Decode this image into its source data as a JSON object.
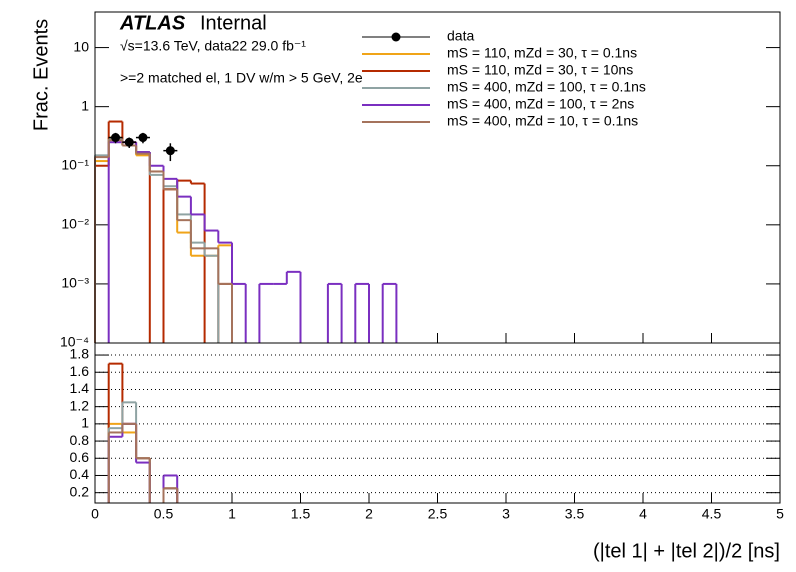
{
  "chart_data": [
    {
      "type": "histogram",
      "annotations": [
        "ATLAS",
        "Internal",
        "√s=13.6 TeV, data22 29.0 fb⁻¹",
        ">=2 matched el, 1 DV w/m > 5 GeV, 2e"
      ],
      "y_label": "Frac. Events",
      "log_y": true,
      "legend": "top-right",
      "xlim": [
        0,
        5
      ],
      "ylim": [
        0.0001,
        40
      ],
      "yticks": [
        {
          "value": 0.0001,
          "label": "10⁻⁴"
        },
        {
          "value": 0.001,
          "label": "10⁻³"
        },
        {
          "value": 0.01,
          "label": "10⁻²"
        },
        {
          "value": 0.1,
          "label": "10⁻¹"
        },
        1,
        10
      ],
      "bins": [
        0,
        0.1,
        0.2,
        0.3,
        0.4,
        0.5,
        0.6,
        0.7,
        0.8,
        0.9,
        1.0,
        1.1,
        1.2,
        1.3,
        1.4,
        1.5,
        1.6,
        1.7,
        1.8,
        1.9,
        2.0,
        2.1,
        2.2,
        2.3
      ],
      "data": {
        "name": "data",
        "color": "#000000",
        "x": [
          0.15,
          0.25,
          0.35,
          0.55
        ],
        "values": [
          0.3,
          0.25,
          0.3,
          0.18
        ],
        "errors": [
          0.06,
          0.05,
          0.06,
          0.06
        ]
      },
      "series": [
        {
          "name": "mS = 110, mZd = 30, τ = 0.1ns",
          "color": "#f0a418",
          "values": [
            0.12,
            0.3,
            0.22,
            0.15,
            0.08,
            0.04,
            0.0074,
            0.003,
            0.003,
            0.0045,
            null,
            null,
            null,
            null,
            null,
            null,
            null,
            null,
            null,
            null,
            null,
            null,
            null
          ]
        },
        {
          "name": "mS = 110, mZd = 30, τ = 10ns",
          "color": "#b52a00",
          "values": [
            0.1,
            0.56,
            0.25,
            0.17,
            null,
            0.04,
            0.056,
            0.05,
            null,
            0.001,
            null,
            null,
            null,
            null,
            null,
            null,
            null,
            null,
            null,
            null,
            null,
            null,
            null
          ]
        },
        {
          "name": "mS = 400, mZd = 100, τ = 0.1ns",
          "color": "#8fa3a3",
          "values": [
            0.15,
            0.28,
            0.22,
            0.17,
            0.07,
            0.045,
            0.015,
            0.005,
            0.003,
            null,
            null,
            null,
            null,
            null,
            null,
            null,
            null,
            null,
            null,
            null,
            null,
            null,
            null
          ]
        },
        {
          "name": "mS = 400, mZd = 100, τ = 2ns",
          "color": "#7a2fc0",
          "values": [
            null,
            0.25,
            0.25,
            0.17,
            0.1,
            0.06,
            0.03,
            0.015,
            0.008,
            0.005,
            0.001,
            null,
            0.001,
            0.001,
            0.0016,
            null,
            null,
            0.001,
            null,
            0.001,
            null,
            0.001,
            null
          ]
        },
        {
          "name": "mS = 400, mZd = 10, τ = 0.1ns",
          "color": "#a5735c",
          "values": [
            0.14,
            0.27,
            0.22,
            0.16,
            0.08,
            0.04,
            0.012,
            0.004,
            0.004,
            0.001,
            null,
            null,
            null,
            null,
            null,
            null,
            null,
            null,
            null,
            null,
            null,
            null,
            null
          ]
        }
      ]
    },
    {
      "type": "histogram",
      "x_label": "(|tel 1| + |tel 2|)/2 [ns]",
      "grid": true,
      "xlim": [
        0,
        5
      ],
      "xticks": [
        0,
        0.5,
        1,
        1.5,
        2,
        2.5,
        3,
        3.5,
        4,
        4.5,
        5
      ],
      "ylim": [
        0.08,
        1.94
      ],
      "yticks": [
        0.2,
        0.4,
        0.6,
        0.8,
        1,
        1.2,
        1.4,
        1.6,
        1.8
      ],
      "bins": [
        0.1,
        0.2,
        0.3,
        0.4,
        0.5,
        0.6
      ],
      "series": [
        {
          "color": "#f0a418",
          "values": [
            1.0,
            0.9,
            0.6,
            null,
            0.25
          ]
        },
        {
          "color": "#b52a00",
          "values": [
            1.7,
            1.0,
            0.6,
            null,
            0.25
          ]
        },
        {
          "color": "#8fa3a3",
          "values": [
            0.95,
            1.25,
            0.6,
            null,
            0.25
          ]
        },
        {
          "color": "#7a2fc0",
          "values": [
            0.85,
            1.0,
            0.55,
            null,
            0.4
          ]
        },
        {
          "color": "#a5735c",
          "values": [
            0.9,
            1.0,
            0.6,
            null,
            0.25
          ]
        }
      ]
    }
  ]
}
